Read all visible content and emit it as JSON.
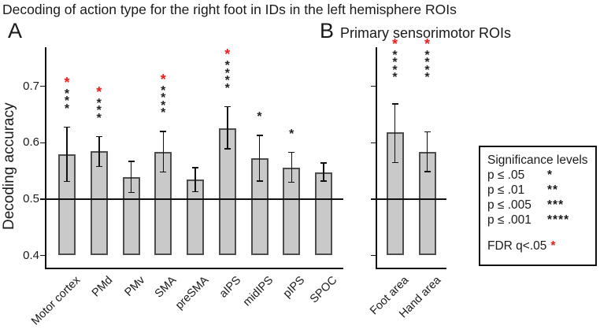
{
  "figure": {
    "title": "Decoding of action type for the right foot in IDs in the left hemisphere ROIs",
    "panel_a_label": "A",
    "panel_b_label": "B",
    "panel_b_title": "Primary sensorimotor ROIs",
    "y_axis_label": "Decoding accuracy"
  },
  "legend": {
    "title": "Significance levels",
    "rows": [
      {
        "label": "p ≤ .05",
        "stars": "*"
      },
      {
        "label": "p ≤ .01",
        "stars": "**"
      },
      {
        "label": "p ≤ .005",
        "stars": "***"
      },
      {
        "label": "p ≤ .001",
        "stars": "****"
      }
    ],
    "fdr_label": "FDR q<.05",
    "fdr_star": "*"
  },
  "colors": {
    "bar_fill": "#c9c9c9",
    "bar_edge": "#4e4e4e",
    "error_bar": "#111111",
    "axis": "#111111",
    "chance_line": "#111111",
    "sig_black": "#222222",
    "sig_red": "#ee1c1c",
    "text": "#1a1a1a",
    "background": "#ffffff"
  },
  "chart_data": [
    {
      "type": "bar",
      "panel": "A",
      "panel_label": "A",
      "title": "",
      "categories": [
        "Motor cortex",
        "PMd",
        "PMv",
        "SMA",
        "preSMA",
        "aIPS",
        "midIPS",
        "pIPS",
        "SPOC"
      ],
      "values": [
        0.58,
        0.585,
        0.539,
        0.584,
        0.535,
        0.625,
        0.572,
        0.556,
        0.548
      ],
      "error_high": [
        0.628,
        0.611,
        0.567,
        0.62,
        0.556,
        0.664,
        0.613,
        0.583,
        0.564
      ],
      "error_low": [
        0.531,
        0.558,
        0.512,
        0.548,
        0.513,
        0.589,
        0.532,
        0.53,
        0.532
      ],
      "significance": [
        {
          "black_stars": "***",
          "fdr_red_star": true
        },
        {
          "black_stars": "***",
          "fdr_red_star": true
        },
        {
          "black_stars": "",
          "fdr_red_star": false
        },
        {
          "black_stars": "****",
          "fdr_red_star": true
        },
        {
          "black_stars": "",
          "fdr_red_star": false
        },
        {
          "black_stars": "****",
          "fdr_red_star": true
        },
        {
          "black_stars": "*",
          "fdr_red_star": false
        },
        {
          "black_stars": "*",
          "fdr_red_star": false
        },
        {
          "black_stars": "",
          "fdr_red_star": false
        }
      ],
      "xlabel": "",
      "ylabel": "Decoding accuracy",
      "yticks": [
        0.4,
        0.5,
        0.6,
        0.7
      ],
      "ylim": [
        0.38,
        0.77
      ],
      "bar_base": 0.4,
      "chance_line": 0.5,
      "grid": false
    },
    {
      "type": "bar",
      "panel": "B",
      "panel_label": "B",
      "title": "Primary sensorimotor ROIs",
      "categories": [
        "Foot area",
        "Hand area"
      ],
      "values": [
        0.618,
        0.584
      ],
      "error_high": [
        0.669,
        0.619
      ],
      "error_low": [
        0.565,
        0.549
      ],
      "significance": [
        {
          "black_stars": "****",
          "fdr_red_star": true
        },
        {
          "black_stars": "****",
          "fdr_red_star": true
        }
      ],
      "xlabel": "",
      "ylabel": "",
      "yticks": [
        0.4,
        0.5,
        0.6,
        0.7
      ],
      "ylim": [
        0.38,
        0.77
      ],
      "bar_base": 0.4,
      "chance_line": 0.5,
      "grid": false
    }
  ]
}
